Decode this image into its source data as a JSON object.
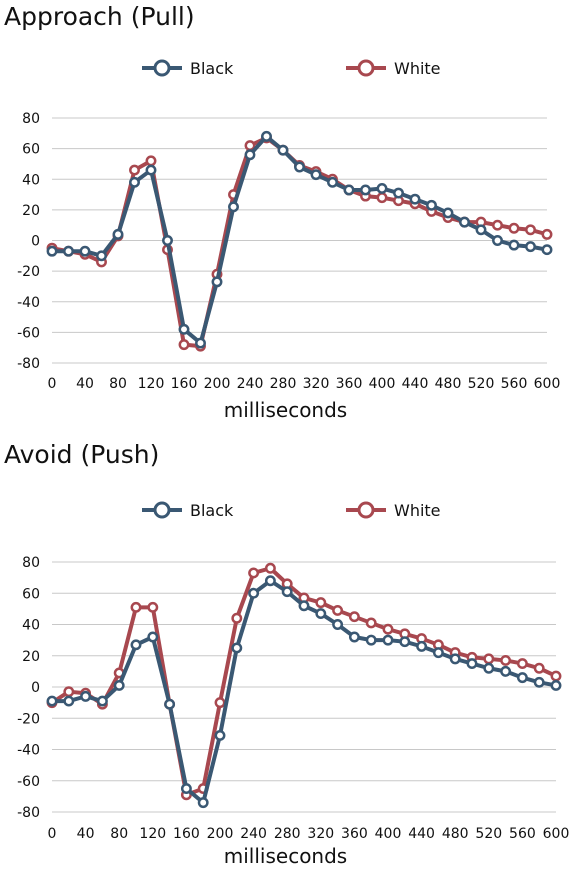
{
  "colors": {
    "black_series": "#3a5873",
    "white_series": "#a8484f",
    "grid": "#c8c8c8"
  },
  "chart_data": [
    {
      "type": "line",
      "title": "Approach (Pull)",
      "xlabel": "milliseconds",
      "ylabel": "",
      "xlim": [
        0,
        600
      ],
      "ylim": [
        -80,
        80
      ],
      "x_ticks": [
        "0",
        "40",
        "80",
        "120",
        "160",
        "200",
        "240",
        "280",
        "320",
        "360",
        "400",
        "440",
        "480",
        "520",
        "560",
        "600"
      ],
      "y_ticks": [
        "80",
        "60",
        "40",
        "20",
        "0",
        "-20",
        "-40",
        "-60",
        "-80"
      ],
      "grid": "horizontal",
      "legend": "top-center",
      "x": [
        0,
        20,
        40,
        60,
        80,
        100,
        120,
        140,
        160,
        180,
        200,
        220,
        240,
        260,
        280,
        300,
        320,
        340,
        360,
        380,
        400,
        420,
        440,
        460,
        480,
        500,
        520,
        540,
        560,
        580,
        600
      ],
      "series": [
        {
          "name": "Black",
          "values": [
            -7,
            -7,
            -7,
            -10,
            4,
            38,
            46,
            0,
            -58,
            -67,
            -27,
            22,
            56,
            68,
            59,
            48,
            43,
            38,
            33,
            33,
            34,
            31,
            27,
            23,
            18,
            12,
            7,
            0,
            -3,
            -4,
            -6
          ]
        },
        {
          "name": "White",
          "values": [
            -5,
            -7,
            -9,
            -14,
            3,
            46,
            52,
            -6,
            -68,
            -69,
            -22,
            30,
            62,
            67,
            59,
            49,
            45,
            40,
            33,
            29,
            28,
            26,
            24,
            19,
            15,
            12,
            12,
            10,
            8,
            7,
            4
          ]
        }
      ]
    },
    {
      "type": "line",
      "title": "Avoid (Push)",
      "xlabel": "milliseconds",
      "ylabel": "",
      "xlim": [
        0,
        600
      ],
      "ylim": [
        -80,
        80
      ],
      "x_ticks": [
        "0",
        "40",
        "80",
        "120",
        "160",
        "200",
        "240",
        "280",
        "320",
        "360",
        "400",
        "440",
        "480",
        "520",
        "560",
        "600"
      ],
      "y_ticks": [
        "80",
        "60",
        "40",
        "20",
        "0",
        "-20",
        "-40",
        "-60",
        "-80"
      ],
      "grid": "horizontal",
      "legend": "top-center",
      "x": [
        0,
        20,
        40,
        60,
        80,
        100,
        120,
        140,
        160,
        180,
        200,
        220,
        240,
        260,
        280,
        300,
        320,
        340,
        360,
        380,
        400,
        420,
        440,
        460,
        480,
        500,
        520,
        540,
        560,
        580,
        600
      ],
      "series": [
        {
          "name": "Black",
          "values": [
            -9,
            -9,
            -6,
            -9,
            1,
            27,
            32,
            -11,
            -65,
            -74,
            -31,
            25,
            60,
            68,
            61,
            52,
            47,
            40,
            32,
            30,
            30,
            29,
            26,
            22,
            18,
            15,
            12,
            10,
            6,
            3,
            1
          ]
        },
        {
          "name": "White",
          "values": [
            -10,
            -3,
            -4,
            -11,
            9,
            51,
            51,
            -11,
            -69,
            -65,
            -10,
            44,
            73,
            76,
            66,
            57,
            54,
            49,
            45,
            41,
            37,
            34,
            31,
            27,
            22,
            19,
            18,
            17,
            15,
            12,
            7
          ]
        }
      ]
    }
  ]
}
